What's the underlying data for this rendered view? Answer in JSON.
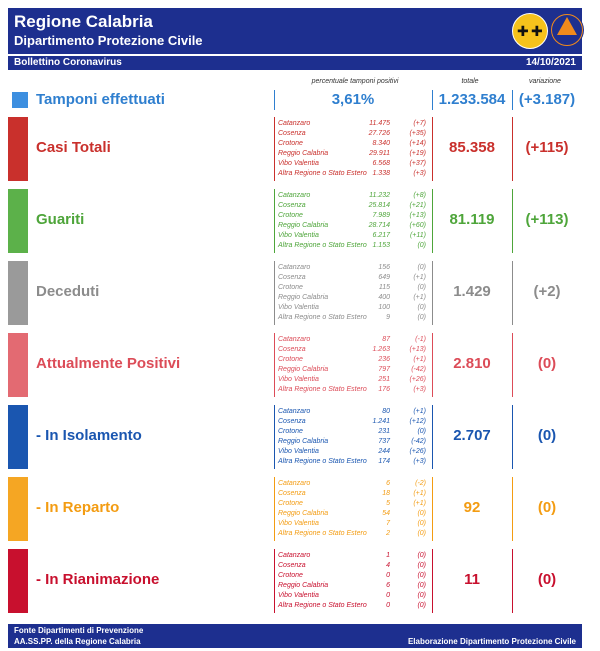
{
  "header": {
    "title": "Regione Calabria",
    "subtitle": "Dipartimento Protezione Civile",
    "bulletin": "Bollettino Coronavirus",
    "date": "14/10/2021"
  },
  "columns": {
    "pct": "percentuale tamponi positivi",
    "total": "totale",
    "variation": "variazione"
  },
  "tamponi": {
    "label": "Tamponi effettuati",
    "pct": "3,61%",
    "total": "1.233.584",
    "variation": "(+3.187)",
    "color": "#2f7fcf"
  },
  "sections": [
    {
      "label": "Casi Totali",
      "color": "#c9302c",
      "square": "#c9302c",
      "total": "85.358",
      "variation": "(+115)",
      "rows": [
        {
          "name": "Catanzaro",
          "value": "11.475",
          "delta": "(+7)"
        },
        {
          "name": "Cosenza",
          "value": "27.726",
          "delta": "(+35)"
        },
        {
          "name": "Crotone",
          "value": "8.340",
          "delta": "(+14)"
        },
        {
          "name": "Reggio Calabria",
          "value": "29.911",
          "delta": "(+19)"
        },
        {
          "name": "Vibo Valentia",
          "value": "6.568",
          "delta": "(+37)"
        },
        {
          "name": "Altra Regione o Stato Estero",
          "value": "1.338",
          "delta": "(+3)"
        }
      ]
    },
    {
      "label": "Guariti",
      "color": "#4ea53a",
      "square": "#5cb14a",
      "total": "81.119",
      "variation": "(+113)",
      "rows": [
        {
          "name": "Catanzaro",
          "value": "11.232",
          "delta": "(+8)"
        },
        {
          "name": "Cosenza",
          "value": "25.814",
          "delta": "(+21)"
        },
        {
          "name": "Crotone",
          "value": "7.989",
          "delta": "(+13)"
        },
        {
          "name": "Reggio Calabria",
          "value": "28.714",
          "delta": "(+60)"
        },
        {
          "name": "Vibo Valentia",
          "value": "6.217",
          "delta": "(+11)"
        },
        {
          "name": "Altra Regione o Stato Estero",
          "value": "1.153",
          "delta": "(0)"
        }
      ]
    },
    {
      "label": "Deceduti",
      "color": "#8c8c8c",
      "square": "#9a9a9a",
      "total": "1.429",
      "variation": "(+2)",
      "rows": [
        {
          "name": "Catanzaro",
          "value": "156",
          "delta": "(0)"
        },
        {
          "name": "Cosenza",
          "value": "649",
          "delta": "(+1)"
        },
        {
          "name": "Crotone",
          "value": "115",
          "delta": "(0)"
        },
        {
          "name": "Reggio Calabria",
          "value": "400",
          "delta": "(+1)"
        },
        {
          "name": "Vibo Valentia",
          "value": "100",
          "delta": "(0)"
        },
        {
          "name": "Altra Regione o Stato Estero",
          "value": "9",
          "delta": "(0)"
        }
      ]
    },
    {
      "label": "Attualmente Positivi",
      "color": "#dc4c58",
      "square": "#e36a72",
      "total": "2.810",
      "variation": "(0)",
      "rows": [
        {
          "name": "Catanzaro",
          "value": "87",
          "delta": "(-1)"
        },
        {
          "name": "Cosenza",
          "value": "1.263",
          "delta": "(+13)"
        },
        {
          "name": "Crotone",
          "value": "236",
          "delta": "(+1)"
        },
        {
          "name": "Reggio Calabria",
          "value": "797",
          "delta": "(-42)"
        },
        {
          "name": "Vibo Valentia",
          "value": "251",
          "delta": "(+26)"
        },
        {
          "name": "Altra Regione o Stato Estero",
          "value": "176",
          "delta": "(+3)"
        }
      ]
    },
    {
      "label": "- In Isolamento",
      "color": "#1a56b0",
      "square": "#1a56b0",
      "total": "2.707",
      "variation": "(0)",
      "rows": [
        {
          "name": "Catanzaro",
          "value": "80",
          "delta": "(+1)"
        },
        {
          "name": "Cosenza",
          "value": "1.241",
          "delta": "(+12)"
        },
        {
          "name": "Crotone",
          "value": "231",
          "delta": "(0)"
        },
        {
          "name": "Reggio Calabria",
          "value": "737",
          "delta": "(-42)"
        },
        {
          "name": "Vibo Valentia",
          "value": "244",
          "delta": "(+26)"
        },
        {
          "name": "Altra Regione o Stato Estero",
          "value": "174",
          "delta": "(+3)"
        }
      ]
    },
    {
      "label": "- In Reparto",
      "color": "#f39c12",
      "square": "#f5a623",
      "total": "92",
      "variation": "(0)",
      "rows": [
        {
          "name": "Catanzaro",
          "value": "6",
          "delta": "(-2)"
        },
        {
          "name": "Cosenza",
          "value": "18",
          "delta": "(+1)"
        },
        {
          "name": "Crotone",
          "value": "5",
          "delta": "(+1)"
        },
        {
          "name": "Reggio Calabria",
          "value": "54",
          "delta": "(0)"
        },
        {
          "name": "Vibo Valentia",
          "value": "7",
          "delta": "(0)"
        },
        {
          "name": "Altra Regione o Stato Estero",
          "value": "2",
          "delta": "(0)"
        }
      ]
    },
    {
      "label": "- In Rianimazione",
      "color": "#c8102e",
      "square": "#c8102e",
      "total": "11",
      "variation": "(0)",
      "rows": [
        {
          "name": "Catanzaro",
          "value": "1",
          "delta": "(0)"
        },
        {
          "name": "Cosenza",
          "value": "4",
          "delta": "(0)"
        },
        {
          "name": "Crotone",
          "value": "0",
          "delta": "(0)"
        },
        {
          "name": "Reggio Calabria",
          "value": "6",
          "delta": "(0)"
        },
        {
          "name": "Vibo Valentia",
          "value": "0",
          "delta": "(0)"
        },
        {
          "name": "Altra Regione o Stato Estero",
          "value": "0",
          "delta": "(0)"
        }
      ]
    }
  ],
  "footer": {
    "line1": "Fonte Dipartimenti di Prevenzione",
    "line2": "AA.SS.PP.  della Regione Calabria",
    "right": "Elaborazione Dipartimento Protezione Civile"
  }
}
